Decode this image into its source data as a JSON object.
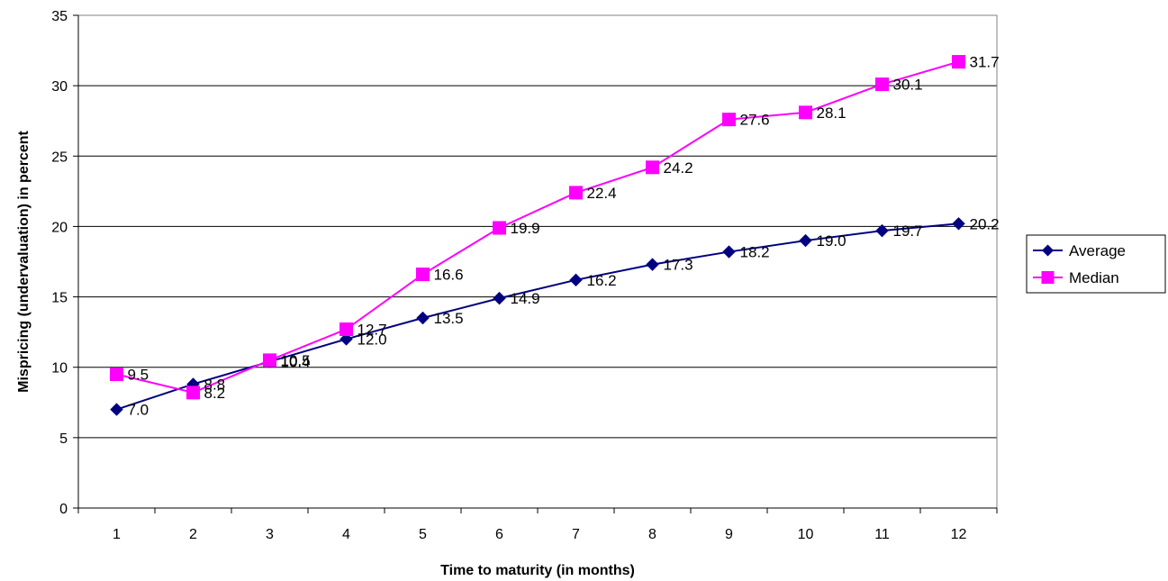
{
  "chart_data": {
    "type": "line",
    "title": "",
    "xlabel": "Time to maturity (in months)",
    "ylabel": "Mispricing (undervaluation) in percent",
    "categories": [
      "1",
      "2",
      "3",
      "4",
      "5",
      "6",
      "7",
      "8",
      "9",
      "10",
      "11",
      "12"
    ],
    "ylim": [
      0,
      35
    ],
    "yticks": [
      "0",
      "5",
      "10",
      "15",
      "20",
      "25",
      "30",
      "35"
    ],
    "grid": "horizontal",
    "legend_position": "right",
    "series": [
      {
        "name": "Average",
        "values": [
          7.0,
          8.8,
          10.4,
          12.0,
          13.5,
          14.9,
          16.2,
          17.3,
          18.2,
          19.0,
          19.7,
          20.2
        ],
        "labels": [
          "7.0",
          "8.8",
          "10.4",
          "12.0",
          "13.5",
          "14.9",
          "16.2",
          "17.3",
          "18.2",
          "19.0",
          "19.7",
          "20.2"
        ],
        "color": "#000080",
        "marker": "diamond"
      },
      {
        "name": "Median",
        "values": [
          9.5,
          8.2,
          10.5,
          12.7,
          16.6,
          19.9,
          22.4,
          24.2,
          27.6,
          28.1,
          30.1,
          31.7
        ],
        "labels": [
          "9.5",
          "8.2",
          "10.5",
          "12.7",
          "16.6",
          "19.9",
          "22.4",
          "24.2",
          "27.6",
          "28.1",
          "30.1",
          "31.7"
        ],
        "color": "#FF00FF",
        "marker": "square"
      }
    ]
  }
}
